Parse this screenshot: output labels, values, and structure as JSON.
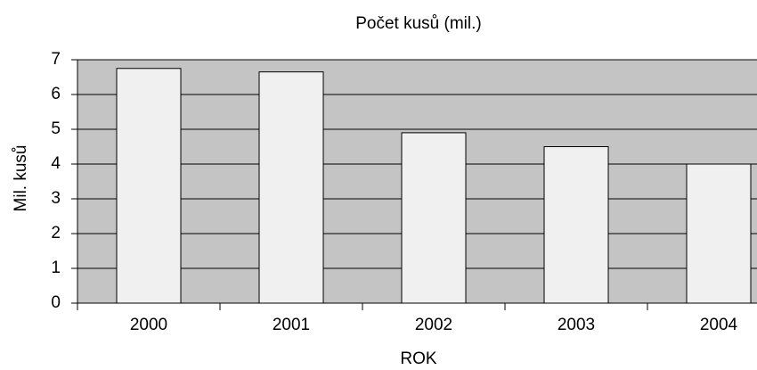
{
  "chart_data": {
    "type": "bar",
    "title": "Počet kusů (mil.)",
    "x_label": "ROK",
    "y_label": "Mil. kusů",
    "categories": [
      "2000",
      "2001",
      "2002",
      "2003",
      "2004"
    ],
    "values": [
      6.75,
      6.65,
      4.9,
      4.5,
      4.0
    ],
    "color": "#f0f0f0",
    "background": "#c4c4c4",
    "ylim": [
      0,
      7
    ],
    "yticks": [
      0,
      1,
      2,
      3,
      4,
      5,
      6,
      7
    ],
    "grid": true
  }
}
